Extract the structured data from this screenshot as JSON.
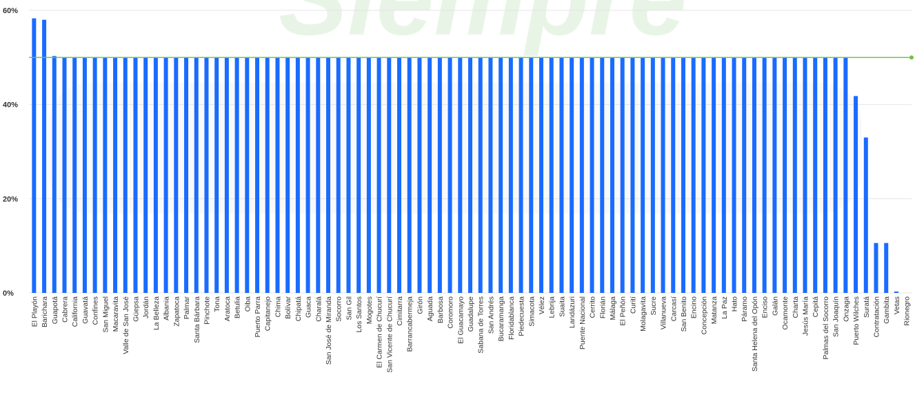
{
  "watermark": {
    "text": "Siempre"
  },
  "colors": {
    "bar": "#1a6bff",
    "reference_line": "#72c04a",
    "grid": "#e4e4e4",
    "tick_text": "#333333",
    "watermark": "#e8f5e6"
  },
  "chart_data": {
    "type": "bar",
    "title": "",
    "xlabel": "",
    "ylabel": "",
    "ylim": [
      0,
      60
    ],
    "y_tick_labels": [
      "0%",
      "20%",
      "40%",
      "60%"
    ],
    "y_ticks": [
      0,
      20,
      40,
      60
    ],
    "grid": true,
    "reference_line": 50,
    "categories": [
      "El Playón",
      "Barichara",
      "Guapotá",
      "Cabrera",
      "California",
      "Guavatá",
      "Confines",
      "San Miguel",
      "Macaravita",
      "Valle de San José",
      "Güepsa",
      "Jordán",
      "La Belleza",
      "Albania",
      "Zapatoca",
      "Palmar",
      "Santa Bárbara",
      "Pinchote",
      "Tona",
      "Aratoca",
      "Betulia",
      "Oiba",
      "Puerto Parra",
      "Capitanejo",
      "Chima",
      "Bolívar",
      "Chipatá",
      "Guaca",
      "Charalá",
      "San José de Miranda",
      "Socorro",
      "San Gil",
      "Los Santos",
      "Mogotes",
      "El Carmen de Chucurí",
      "San Vicente de Chucurí",
      "Cimitarra",
      "Barrancabermeja",
      "Girón",
      "Aguada",
      "Barbosa",
      "Coromoro",
      "El Guacamayo",
      "Guadalupe",
      "Sabana de Torres",
      "San Andrés",
      "Bucaramanga",
      "Floridablanca",
      "Piedecuesta",
      "Simacota",
      "Vélez",
      "Lebrija",
      "Suaita",
      "Landázuri",
      "Puente Nacional",
      "Cerrito",
      "Florián",
      "Málaga",
      "El Peñón",
      "Curití",
      "Molagavita",
      "Sucre",
      "Villanueva",
      "Carcasí",
      "San Benito",
      "Encino",
      "Concepción",
      "Matanza",
      "La Paz",
      "Hato",
      "Páramo",
      "Santa Helena del Opón",
      "Enciso",
      "Galán",
      "Ocamonte",
      "Charta",
      "Jesús María",
      "Cepitá",
      "Palmas del Socorro",
      "San Joaquín",
      "Onzaga",
      "Puerto Wilches",
      "Suratá",
      "Contratación",
      "Gambita",
      "Vetas",
      "Rionegro"
    ],
    "values": [
      58.3,
      58.0,
      50.3,
      50,
      50,
      50,
      50,
      50,
      50,
      50,
      50,
      50,
      50,
      50,
      50,
      50,
      50,
      50,
      50,
      50,
      50,
      50,
      50,
      50,
      50,
      50,
      50,
      50,
      50,
      50,
      50,
      50,
      50,
      50,
      50,
      50,
      50,
      50,
      50,
      50,
      50,
      50,
      50,
      50,
      50,
      50,
      50,
      50,
      50,
      50,
      50,
      50,
      50,
      50,
      50,
      50,
      50,
      50,
      50,
      50,
      50,
      50,
      50,
      50,
      50,
      50,
      50,
      50,
      50,
      50,
      50,
      50,
      50,
      50,
      50,
      50,
      50,
      50,
      50,
      50,
      50,
      41.8,
      33.0,
      10.6,
      10.6,
      0.3,
      0
    ]
  }
}
